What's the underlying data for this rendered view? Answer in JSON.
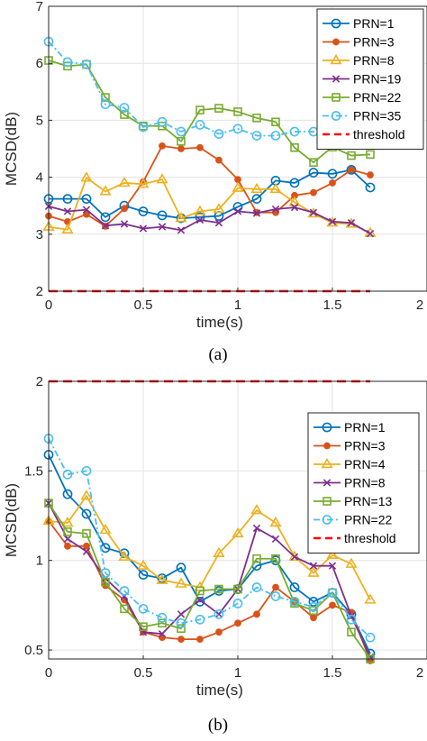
{
  "chart_data": [
    {
      "type": "line",
      "caption": "(a)",
      "xlabel": "time(s)",
      "ylabel": "MCSD(dB)",
      "xlim": [
        0,
        2
      ],
      "ylim": [
        2,
        7
      ],
      "xticks": [
        0,
        0.5,
        1,
        1.5,
        2
      ],
      "xtick_labels": [
        "0",
        "0.5",
        "1",
        "1.5",
        "2"
      ],
      "yticks": [
        2,
        3,
        4,
        5,
        6,
        7
      ],
      "ytick_labels": [
        "2",
        "3",
        "4",
        "5",
        "6",
        "7"
      ],
      "grid": true,
      "legend_position": "top-right",
      "x": [
        0,
        0.1,
        0.2,
        0.3,
        0.4,
        0.5,
        0.6,
        0.7,
        0.8,
        0.9,
        1.0,
        1.1,
        1.2,
        1.3,
        1.4,
        1.5,
        1.6,
        1.7
      ],
      "series": [
        {
          "name": "PRN=1",
          "color": "#0072BD",
          "marker": "circle",
          "dash": "solid",
          "values": [
            3.62,
            3.62,
            3.62,
            3.3,
            3.5,
            3.4,
            3.33,
            3.28,
            3.3,
            3.32,
            3.48,
            3.62,
            3.94,
            3.9,
            4.08,
            4.06,
            4.13,
            3.82
          ]
        },
        {
          "name": "PRN=3",
          "color": "#D95319",
          "marker": "dot",
          "dash": "solid",
          "values": [
            3.32,
            3.22,
            3.35,
            3.14,
            3.45,
            3.92,
            4.55,
            4.5,
            4.52,
            4.3,
            3.96,
            3.38,
            3.38,
            3.68,
            3.73,
            3.9,
            4.13,
            4.04
          ]
        },
        {
          "name": "PRN=8",
          "color": "#EDB120",
          "marker": "triangle",
          "dash": "solid",
          "values": [
            3.13,
            3.08,
            3.99,
            3.75,
            3.9,
            3.88,
            3.96,
            3.28,
            3.4,
            3.44,
            3.81,
            3.79,
            3.79,
            3.56,
            3.36,
            3.2,
            3.18,
            3.02
          ]
        },
        {
          "name": "PRN=19",
          "color": "#7E2F8E",
          "marker": "x",
          "dash": "solid",
          "values": [
            3.49,
            3.4,
            3.43,
            3.15,
            3.18,
            3.1,
            3.13,
            3.07,
            3.25,
            3.2,
            3.4,
            3.37,
            3.44,
            3.47,
            3.38,
            3.22,
            3.2,
            3.01
          ]
        },
        {
          "name": "PRN=22",
          "color": "#77AC30",
          "marker": "square",
          "dash": "solid",
          "values": [
            6.05,
            5.95,
            5.98,
            5.4,
            5.1,
            4.9,
            4.9,
            4.63,
            5.18,
            5.21,
            5.15,
            5.04,
            4.97,
            4.52,
            4.26,
            4.53,
            4.38,
            4.4
          ]
        },
        {
          "name": "PRN=35",
          "color": "#4DBEEE",
          "marker": "circle",
          "dash": "dashdot",
          "values": [
            6.38,
            6.02,
            5.98,
            5.28,
            5.22,
            4.88,
            4.97,
            4.8,
            4.92,
            4.76,
            4.85,
            4.73,
            4.73,
            4.8,
            4.8,
            4.78,
            4.77,
            4.77
          ]
        },
        {
          "name": "threshold",
          "color": "#FF0000",
          "marker": "none",
          "dash": "dash",
          "x": [
            0,
            1.7
          ],
          "values": [
            2.0,
            2.0
          ]
        }
      ]
    },
    {
      "type": "line",
      "caption": "(b)",
      "xlabel": "time(s)",
      "ylabel": "MCSD(dB)",
      "xlim": [
        0,
        2
      ],
      "ylim": [
        0.45,
        2
      ],
      "xticks": [
        0,
        0.5,
        1,
        1.5,
        2
      ],
      "xtick_labels": [
        "0",
        "0.5",
        "1",
        "1.5",
        "2"
      ],
      "yticks": [
        0.5,
        1,
        1.5,
        2
      ],
      "ytick_labels": [
        "0.5",
        "1",
        "1.5",
        "2"
      ],
      "grid": true,
      "legend_position": "top-right",
      "x": [
        0,
        0.1,
        0.2,
        0.3,
        0.4,
        0.5,
        0.6,
        0.7,
        0.8,
        0.9,
        1.0,
        1.1,
        1.2,
        1.3,
        1.4,
        1.5,
        1.6,
        1.7
      ],
      "series": [
        {
          "name": "PRN=1",
          "color": "#0072BD",
          "marker": "circle",
          "dash": "solid",
          "values": [
            1.59,
            1.37,
            1.26,
            1.07,
            1.04,
            0.92,
            0.9,
            0.96,
            0.77,
            0.83,
            0.84,
            0.97,
            1.0,
            0.85,
            0.77,
            0.82,
            0.7,
            0.48
          ]
        },
        {
          "name": "PRN=3",
          "color": "#D95319",
          "marker": "dot",
          "dash": "solid",
          "values": [
            1.22,
            1.08,
            1.08,
            0.86,
            0.78,
            0.6,
            0.57,
            0.56,
            0.56,
            0.6,
            0.65,
            0.7,
            0.85,
            0.77,
            0.68,
            0.75,
            0.71,
            0.44
          ]
        },
        {
          "name": "PRN=4",
          "color": "#EDB120",
          "marker": "triangle",
          "dash": "solid",
          "values": [
            1.22,
            1.21,
            1.36,
            1.17,
            1.02,
            0.97,
            0.89,
            0.87,
            0.85,
            1.04,
            1.15,
            1.28,
            1.21,
            1.02,
            0.93,
            1.03,
            0.98,
            0.78
          ]
        },
        {
          "name": "PRN=8",
          "color": "#7E2F8E",
          "marker": "x",
          "dash": "solid",
          "values": [
            1.32,
            1.12,
            1.05,
            0.9,
            0.8,
            0.6,
            0.59,
            0.7,
            0.78,
            0.7,
            0.84,
            1.18,
            1.12,
            1.02,
            0.97,
            0.97,
            0.69,
            0.46
          ]
        },
        {
          "name": "PRN=13",
          "color": "#77AC30",
          "marker": "square",
          "dash": "solid",
          "values": [
            1.32,
            1.16,
            1.15,
            0.88,
            0.73,
            0.63,
            0.65,
            0.62,
            0.83,
            0.84,
            0.84,
            1.01,
            1.01,
            0.76,
            0.72,
            0.82,
            0.6,
            0.45
          ]
        },
        {
          "name": "PRN=22",
          "color": "#4DBEEE",
          "marker": "circle",
          "dash": "dashdot",
          "values": [
            1.68,
            1.48,
            1.5,
            0.93,
            0.83,
            0.73,
            0.68,
            0.65,
            0.67,
            0.7,
            0.76,
            0.85,
            0.8,
            0.77,
            0.74,
            0.82,
            0.67,
            0.57
          ]
        },
        {
          "name": "threshold",
          "color": "#FF0000",
          "marker": "none",
          "dash": "dash",
          "x": [
            0,
            1.7
          ],
          "values": [
            2.0,
            2.0
          ]
        }
      ]
    }
  ]
}
